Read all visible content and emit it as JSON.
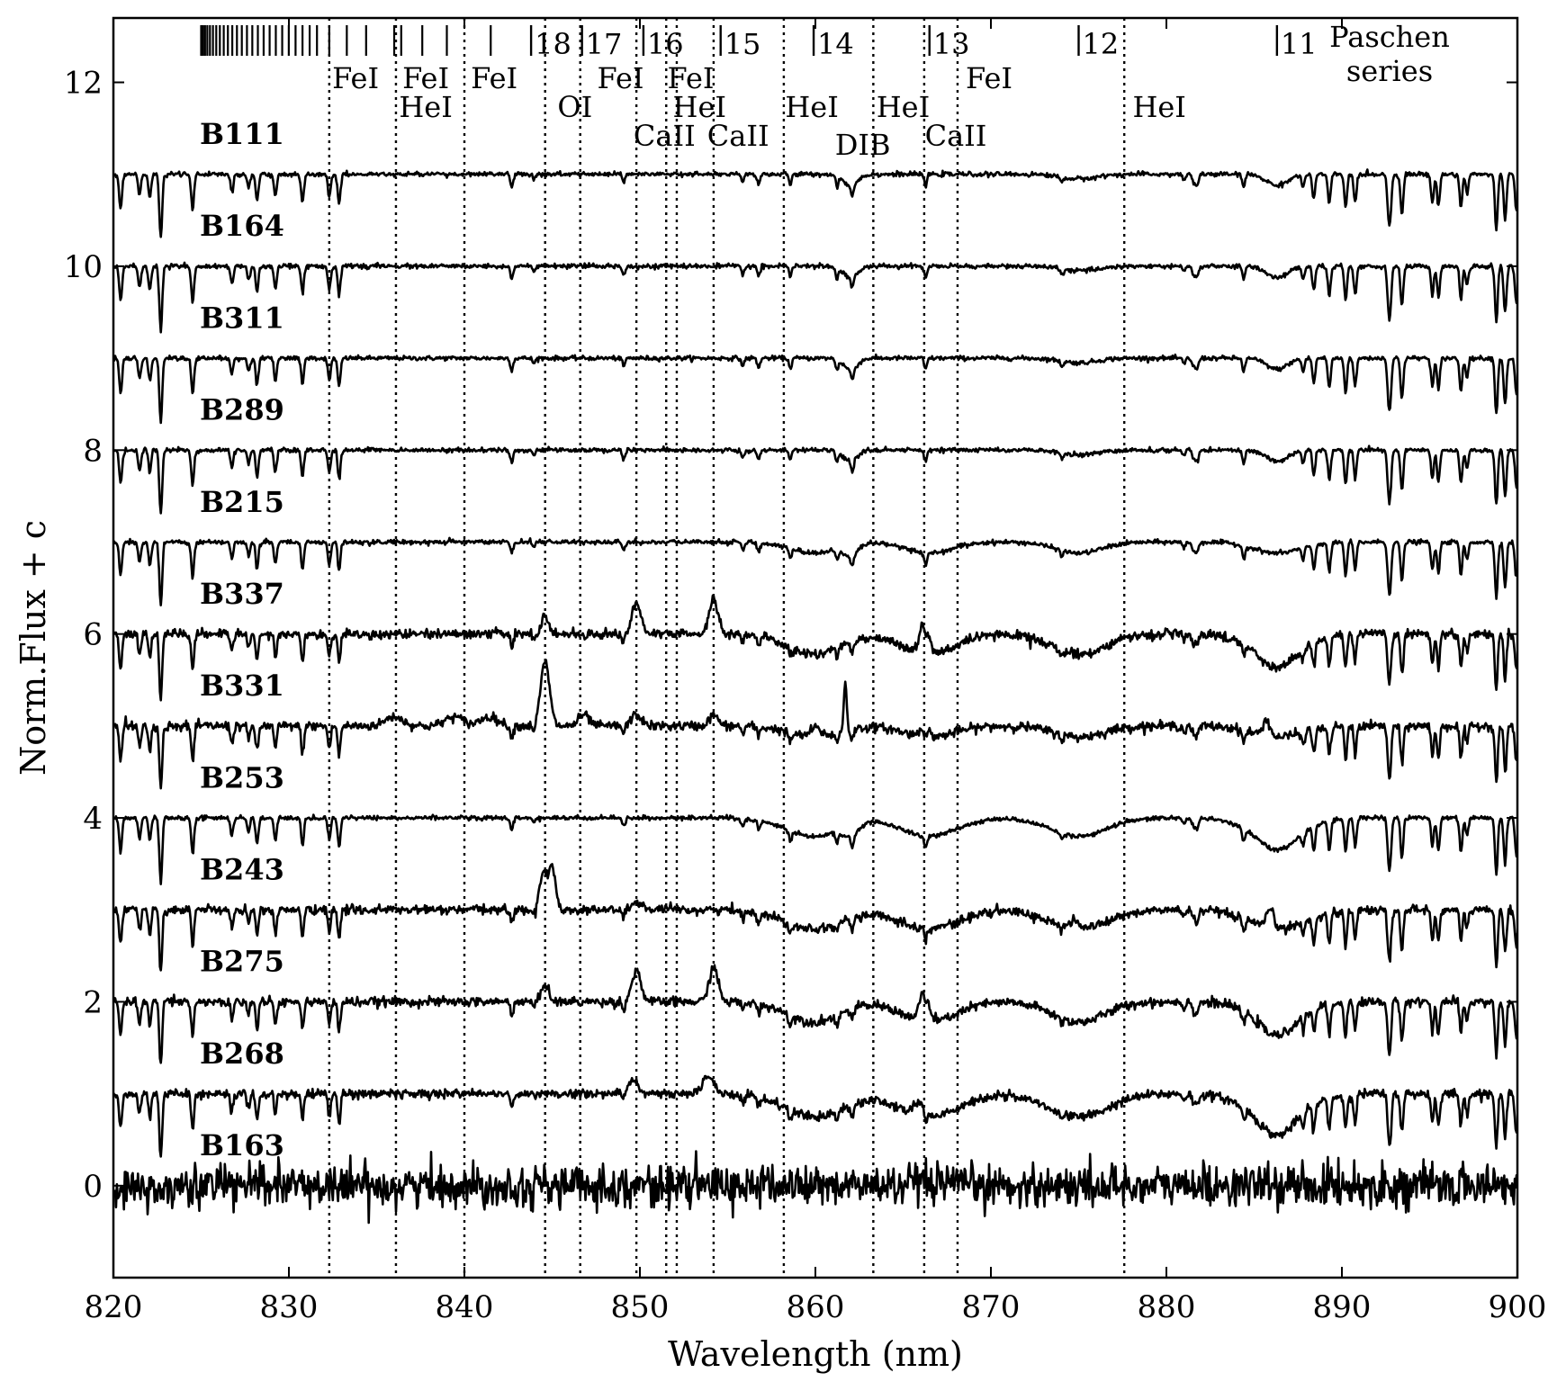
{
  "chart_data": {
    "type": "line",
    "title": "",
    "xlabel": "Wavelength (nm)",
    "ylabel": "Norm.Flux + c",
    "xlim": [
      820,
      900
    ],
    "ylim": [
      -1.0,
      12.7
    ],
    "xticks": [
      820,
      830,
      840,
      850,
      860,
      870,
      880,
      890,
      900
    ],
    "yticks": [
      0,
      2,
      4,
      6,
      8,
      10,
      12
    ],
    "xtick_labels": [
      "820",
      "830",
      "840",
      "850",
      "860",
      "870",
      "880",
      "890",
      "900"
    ],
    "ytick_labels": [
      "0",
      "2",
      "4",
      "6",
      "8",
      "10",
      "12"
    ],
    "grid": false,
    "line_color": "#000000",
    "series": [
      {
        "name": "B111",
        "offset": 11,
        "style": "early_absorption"
      },
      {
        "name": "B164",
        "offset": 10,
        "style": "early_absorption"
      },
      {
        "name": "B311",
        "offset": 9,
        "style": "early_absorption"
      },
      {
        "name": "B289",
        "offset": 8,
        "style": "early_absorption"
      },
      {
        "name": "B215",
        "offset": 7,
        "style": "early_absorption_paschen"
      },
      {
        "name": "B337",
        "offset": 6,
        "style": "emission_cat"
      },
      {
        "name": "B331",
        "offset": 5,
        "style": "emission_oi"
      },
      {
        "name": "B253",
        "offset": 4,
        "style": "paschen_absorption"
      },
      {
        "name": "B243",
        "offset": 3,
        "style": "emission_oi_double"
      },
      {
        "name": "B275",
        "offset": 2,
        "style": "emission_cat"
      },
      {
        "name": "B268",
        "offset": 1,
        "style": "emission_weak"
      },
      {
        "name": "B163",
        "offset": 0,
        "style": "noisy"
      }
    ],
    "vertical_lines": [
      832.3,
      836.1,
      840.0,
      844.6,
      846.6,
      849.8,
      851.5,
      852.1,
      854.2,
      858.2,
      863.3,
      866.2,
      868.1,
      877.6
    ],
    "line_labels": [
      {
        "text": "FeI",
        "x": 833.8,
        "row": 0
      },
      {
        "text": "FeI",
        "x": 837.8,
        "row": 0
      },
      {
        "text": "HeI",
        "x": 837.8,
        "row": 1
      },
      {
        "text": "FeI",
        "x": 841.7,
        "row": 0
      },
      {
        "text": "OI",
        "x": 846.3,
        "row": 1
      },
      {
        "text": "FeI",
        "x": 848.9,
        "row": 0
      },
      {
        "text": "FeI",
        "x": 852.9,
        "row": 0
      },
      {
        "text": "HeI",
        "x": 853.4,
        "row": 1
      },
      {
        "text": "CaII",
        "x": 851.4,
        "row": 2
      },
      {
        "text": "CaII",
        "x": 855.6,
        "row": 2
      },
      {
        "text": "HeI",
        "x": 859.8,
        "row": 1
      },
      {
        "text": "DIB",
        "x": 862.7,
        "row": 3
      },
      {
        "text": "HeI",
        "x": 865.0,
        "row": 1
      },
      {
        "text": "CaII",
        "x": 868.0,
        "row": 2
      },
      {
        "text": "FeI",
        "x": 869.9,
        "row": 0
      },
      {
        "text": "HeI",
        "x": 879.6,
        "row": 1
      }
    ],
    "paschen": {
      "label_line1": "Paschen",
      "label_line2": "series",
      "dense_start": 825.0,
      "dense_end": 831.6,
      "minor_ticks": [
        832.3,
        833.3,
        834.4,
        836.0,
        836.4,
        837.6,
        839.0,
        841.5
      ],
      "lines": [
        {
          "n": "18",
          "x": 843.8
        },
        {
          "n": "17",
          "x": 846.7
        },
        {
          "n": "16",
          "x": 850.2
        },
        {
          "n": "15",
          "x": 854.6
        },
        {
          "n": "14",
          "x": 859.9
        },
        {
          "n": "13",
          "x": 866.5
        },
        {
          "n": "12",
          "x": 875.0
        },
        {
          "n": "11",
          "x": 886.3
        }
      ]
    }
  }
}
